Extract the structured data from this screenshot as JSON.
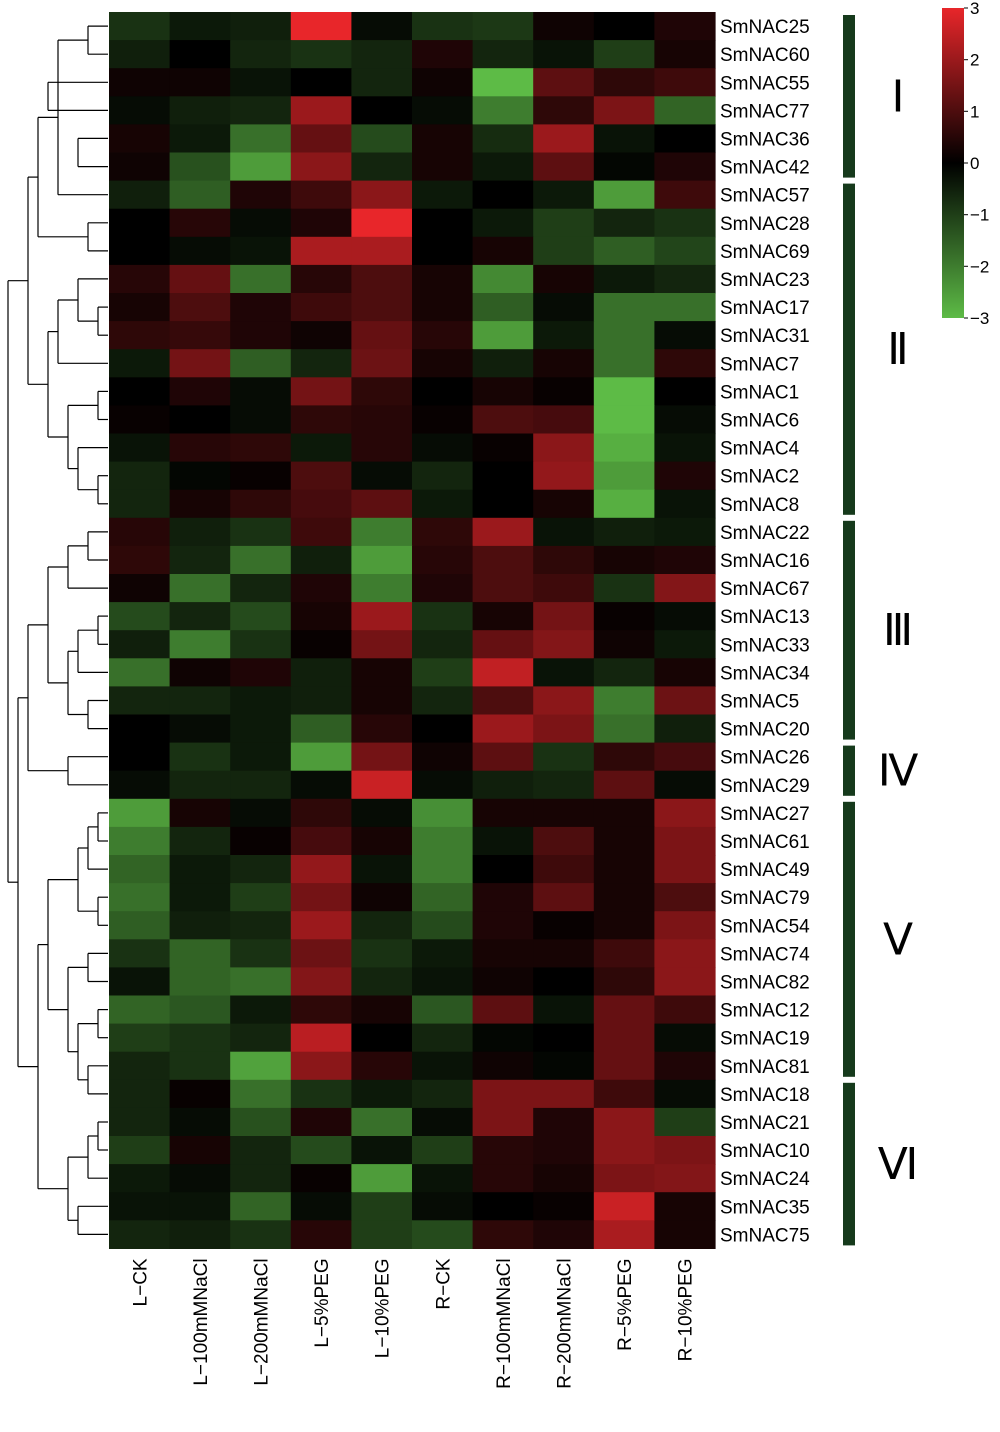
{
  "chart_data": {
    "type": "heatmap",
    "title": "",
    "columns": [
      "L−CK",
      "L−100mMNaCl",
      "L−200mMNaCl",
      "L−5%PEG",
      "L−10%PEG",
      "R−CK",
      "R−100mMNaCl",
      "R−200mMNaCl",
      "R−5%PEG",
      "R−10%PEG"
    ],
    "rows": [
      {
        "name": "SmNAC25",
        "values": [
          -0.8,
          -0.4,
          -0.5,
          3,
          -0.2,
          -0.8,
          -0.9,
          0.2,
          0,
          0.4
        ]
      },
      {
        "name": "SmNAC60",
        "values": [
          -0.5,
          0,
          -0.6,
          -0.8,
          -0.6,
          0.4,
          -0.6,
          -0.3,
          -1.0,
          0.3
        ]
      },
      {
        "name": "SmNAC55",
        "values": [
          0.2,
          0.2,
          -0.3,
          0,
          -0.6,
          0.2,
          -3,
          1.2,
          0.6,
          0.8
        ]
      },
      {
        "name": "SmNAC77",
        "values": [
          -0.2,
          -0.5,
          -0.6,
          2.0,
          0,
          -0.2,
          -2.0,
          0.6,
          1.6,
          -1.6
        ]
      },
      {
        "name": "SmNAC36",
        "values": [
          0.3,
          -0.4,
          -1.8,
          1.3,
          -1.2,
          0.3,
          -0.7,
          2.0,
          -0.3,
          0
        ]
      },
      {
        "name": "SmNAC42",
        "values": [
          0.2,
          -1.3,
          -2.5,
          1.8,
          -0.6,
          0.3,
          -0.4,
          1.2,
          -0.1,
          0.4
        ]
      },
      {
        "name": "SmNAC57",
        "values": [
          -0.5,
          -1.5,
          0.4,
          0.8,
          1.8,
          -0.4,
          0,
          -0.4,
          -2.5,
          0.8
        ]
      },
      {
        "name": "SmNAC28",
        "values": [
          0,
          0.5,
          -0.2,
          0.4,
          3,
          0,
          -0.4,
          -1.0,
          -0.6,
          -0.8
        ]
      },
      {
        "name": "SmNAC69",
        "values": [
          0,
          -0.2,
          -0.3,
          2.2,
          2.2,
          0,
          0.3,
          -1.0,
          -1.5,
          -1.1
        ]
      },
      {
        "name": "SmNAC23",
        "values": [
          0.5,
          1.3,
          -1.8,
          0.5,
          1.0,
          0.3,
          -2.2,
          0.3,
          -0.4,
          -0.6
        ]
      },
      {
        "name": "SmNAC17",
        "values": [
          0.3,
          1.0,
          0.4,
          0.8,
          1.0,
          0.3,
          -1.5,
          -0.2,
          -1.8,
          -1.8
        ]
      },
      {
        "name": "SmNAC31",
        "values": [
          0.6,
          0.7,
          0.4,
          0.2,
          1.3,
          0.5,
          -2.5,
          -0.4,
          -1.8,
          -0.2
        ]
      },
      {
        "name": "SmNAC7",
        "values": [
          -0.4,
          1.5,
          -1.5,
          -0.6,
          1.4,
          0.3,
          -0.5,
          0.3,
          -1.8,
          0.6
        ]
      },
      {
        "name": "SmNAC1",
        "values": [
          0,
          0.4,
          -0.2,
          1.5,
          0.6,
          0,
          0.3,
          0.1,
          -3,
          0
        ]
      },
      {
        "name": "SmNAC6",
        "values": [
          0.1,
          0,
          -0.2,
          0.6,
          0.5,
          0.1,
          1.0,
          0.9,
          -3,
          -0.2
        ]
      },
      {
        "name": "SmNAC4",
        "values": [
          -0.3,
          0.5,
          0.6,
          -0.4,
          0.5,
          -0.2,
          0.1,
          1.8,
          -2.8,
          -0.3
        ]
      },
      {
        "name": "SmNAC2",
        "values": [
          -0.6,
          -0.1,
          0.1,
          1.0,
          -0.2,
          -0.6,
          0,
          1.9,
          -2.5,
          0.4
        ]
      },
      {
        "name": "SmNAC8",
        "values": [
          -0.6,
          0.3,
          0.6,
          0.9,
          1.2,
          -0.4,
          0,
          0.3,
          -2.8,
          -0.3
        ]
      },
      {
        "name": "SmNAC22",
        "values": [
          0.5,
          -0.5,
          -0.8,
          0.8,
          -2.0,
          0.6,
          2.0,
          -0.3,
          -0.5,
          -0.4
        ]
      },
      {
        "name": "SmNAC16",
        "values": [
          0.6,
          -0.6,
          -1.8,
          -0.5,
          -2.5,
          0.5,
          1.0,
          0.6,
          0.3,
          0.4
        ]
      },
      {
        "name": "SmNAC67",
        "values": [
          0.2,
          -1.8,
          -0.6,
          0.4,
          -2.0,
          0.4,
          1.0,
          0.8,
          -0.8,
          1.7
        ]
      },
      {
        "name": "SmNAC13",
        "values": [
          -1.2,
          -0.6,
          -1.2,
          0.3,
          2.0,
          -0.8,
          0.3,
          1.5,
          0.1,
          -0.2
        ]
      },
      {
        "name": "SmNAC33",
        "values": [
          -0.5,
          -2.0,
          -0.8,
          0.1,
          1.5,
          -0.6,
          1.3,
          1.7,
          0.2,
          -0.4
        ]
      },
      {
        "name": "SmNAC34",
        "values": [
          -1.8,
          0.2,
          0.4,
          -0.5,
          0.3,
          -1.0,
          2.5,
          -0.3,
          -0.6,
          0.3
        ]
      },
      {
        "name": "SmNAC5",
        "values": [
          -0.6,
          -0.6,
          -0.4,
          -0.5,
          0.3,
          -0.6,
          1.0,
          1.8,
          -2.0,
          1.4
        ]
      },
      {
        "name": "SmNAC20",
        "values": [
          0,
          -0.2,
          -0.4,
          -1.5,
          0.5,
          0,
          2.0,
          1.6,
          -1.8,
          -0.5
        ]
      },
      {
        "name": "SmNAC26",
        "values": [
          0,
          -0.8,
          -0.4,
          -2.5,
          1.5,
          0.2,
          1.2,
          -0.8,
          0.6,
          0.9
        ]
      },
      {
        "name": "SmNAC29",
        "values": [
          -0.2,
          -0.6,
          -0.6,
          -0.2,
          2.6,
          -0.2,
          -0.5,
          -0.6,
          1.2,
          -0.2
        ]
      },
      {
        "name": "SmNAC27",
        "values": [
          -2.5,
          0.3,
          -0.2,
          0.6,
          -0.2,
          -2.3,
          0.3,
          0.3,
          0.3,
          1.8
        ]
      },
      {
        "name": "SmNAC61",
        "values": [
          -2.0,
          -0.6,
          0.1,
          0.9,
          0.3,
          -2.0,
          -0.3,
          1.0,
          0.3,
          1.6
        ]
      },
      {
        "name": "SmNAC49",
        "values": [
          -1.6,
          -0.4,
          -0.6,
          1.9,
          -0.3,
          -2.0,
          0,
          0.8,
          0.3,
          1.6
        ]
      },
      {
        "name": "SmNAC79",
        "values": [
          -1.8,
          -0.4,
          -1.0,
          1.5,
          0.2,
          -1.6,
          0.4,
          1.2,
          0.3,
          1.0
        ]
      },
      {
        "name": "SmNAC54",
        "values": [
          -1.5,
          -0.5,
          -0.6,
          2.0,
          -0.6,
          -1.2,
          0.4,
          0.1,
          0.3,
          1.6
        ]
      },
      {
        "name": "SmNAC74",
        "values": [
          -0.8,
          -1.6,
          -0.8,
          1.4,
          -0.8,
          -0.4,
          0.3,
          0.3,
          0.8,
          1.8
        ]
      },
      {
        "name": "SmNAC82",
        "values": [
          -0.3,
          -1.6,
          -1.8,
          1.7,
          -0.6,
          -0.3,
          0.2,
          0,
          0.6,
          1.8
        ]
      },
      {
        "name": "SmNAC12",
        "values": [
          -1.6,
          -1.4,
          -0.4,
          0.6,
          0.3,
          -1.4,
          1.2,
          -0.3,
          1.3,
          0.8
        ]
      },
      {
        "name": "SmNAC19",
        "values": [
          -1.0,
          -0.8,
          -0.6,
          2.4,
          0,
          -0.6,
          -0.1,
          0,
          1.3,
          -0.2
        ]
      },
      {
        "name": "SmNAC81",
        "values": [
          -0.6,
          -0.8,
          -2.6,
          1.8,
          0.5,
          -0.3,
          0.2,
          -0.1,
          1.3,
          0.4
        ]
      },
      {
        "name": "SmNAC18",
        "values": [
          -0.6,
          0.1,
          -1.8,
          -0.8,
          -0.4,
          -0.6,
          1.6,
          1.6,
          0.8,
          -0.2
        ]
      },
      {
        "name": "SmNAC21",
        "values": [
          -0.6,
          -0.2,
          -1.3,
          0.4,
          -1.8,
          -0.2,
          1.6,
          0.4,
          1.8,
          -1.0
        ]
      },
      {
        "name": "SmNAC10",
        "values": [
          -1.0,
          0.3,
          -0.6,
          -1.2,
          -0.3,
          -1.0,
          0.5,
          0.4,
          1.8,
          1.6
        ]
      },
      {
        "name": "SmNAC24",
        "values": [
          -0.4,
          -0.2,
          -0.6,
          0.1,
          -2.5,
          -0.3,
          0.5,
          0.3,
          1.6,
          1.7
        ]
      },
      {
        "name": "SmNAC35",
        "values": [
          -0.3,
          -0.3,
          -1.6,
          -0.2,
          -1.0,
          -0.2,
          0,
          0.1,
          2.6,
          0.3
        ]
      },
      {
        "name": "SmNAC75",
        "values": [
          -0.6,
          -0.5,
          -0.8,
          0.5,
          -1.0,
          -1.2,
          0.6,
          0.4,
          2.2,
          0.3
        ]
      }
    ],
    "groups": [
      {
        "label": "Ⅰ",
        "first": 0,
        "last": 5
      },
      {
        "label": "Ⅱ",
        "first": 6,
        "last": 17
      },
      {
        "label": "Ⅲ",
        "first": 18,
        "last": 25
      },
      {
        "label": "Ⅳ",
        "first": 26,
        "last": 27
      },
      {
        "label": "Ⅴ",
        "first": 28,
        "last": 37
      },
      {
        "label": "Ⅵ",
        "first": 38,
        "last": 43
      }
    ],
    "colorbar": {
      "min": -3,
      "max": 3,
      "ticks": [
        "3",
        "2",
        "1",
        "0",
        "−1",
        "−2",
        "−3"
      ],
      "colors": {
        "high": "#e8262a",
        "mid": "#000000",
        "low": "#5dbb46"
      }
    },
    "group_bar_color": "#163a1c",
    "dendrogram_color": "#000000"
  }
}
